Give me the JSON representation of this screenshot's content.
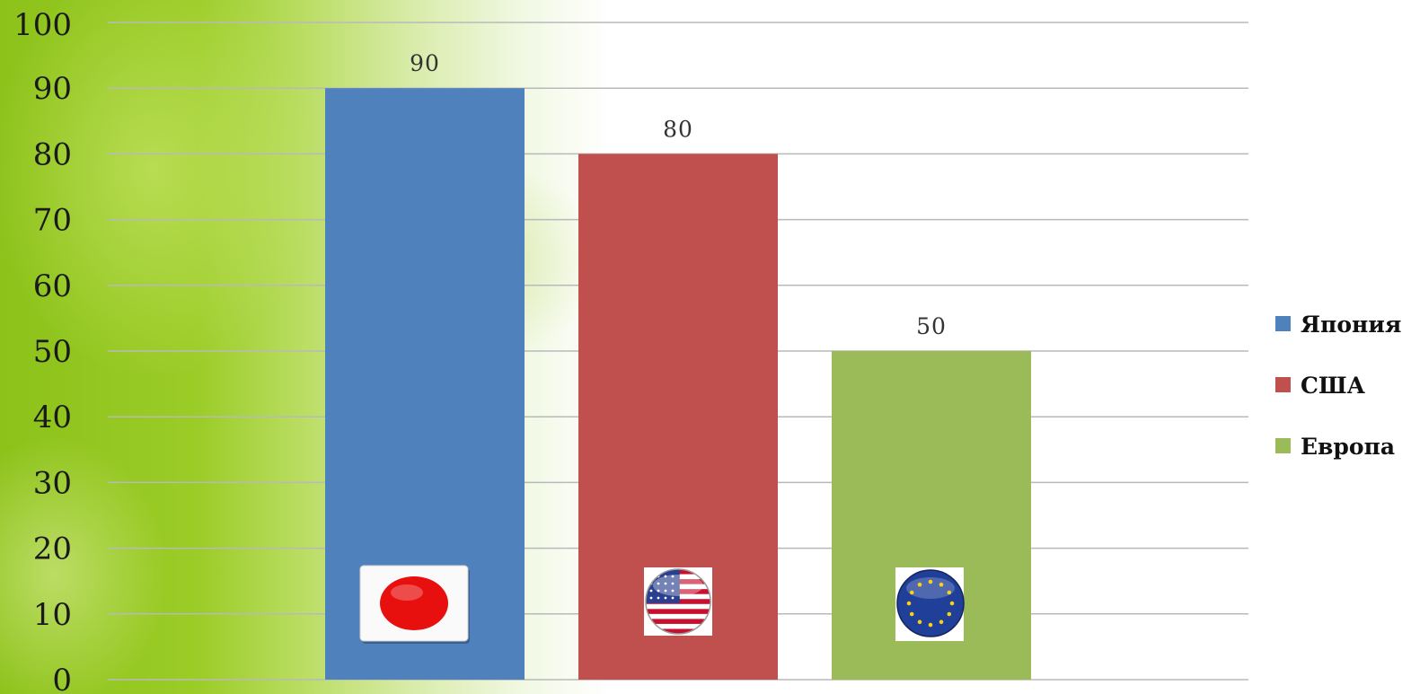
{
  "chart_data": {
    "type": "bar",
    "title": "",
    "xlabel": "",
    "ylabel": "",
    "ylim": [
      0,
      100
    ],
    "yticks": [
      "0",
      "10",
      "20",
      "30",
      "40",
      "50",
      "60",
      "70",
      "80",
      "90",
      "100"
    ],
    "grid": true,
    "legend_position": "right",
    "series": [
      {
        "name": "Япония",
        "value": 90,
        "data_label": "90",
        "color": "#4f81bd",
        "flag_icon": "japan-flag-icon"
      },
      {
        "name": "США",
        "value": 80,
        "data_label": "80",
        "color": "#c0504d",
        "flag_icon": "usa-flag-icon"
      },
      {
        "name": "Европа",
        "value": 50,
        "data_label": "50",
        "color": "#9bbb59",
        "flag_icon": "eu-flag-icon"
      }
    ]
  }
}
